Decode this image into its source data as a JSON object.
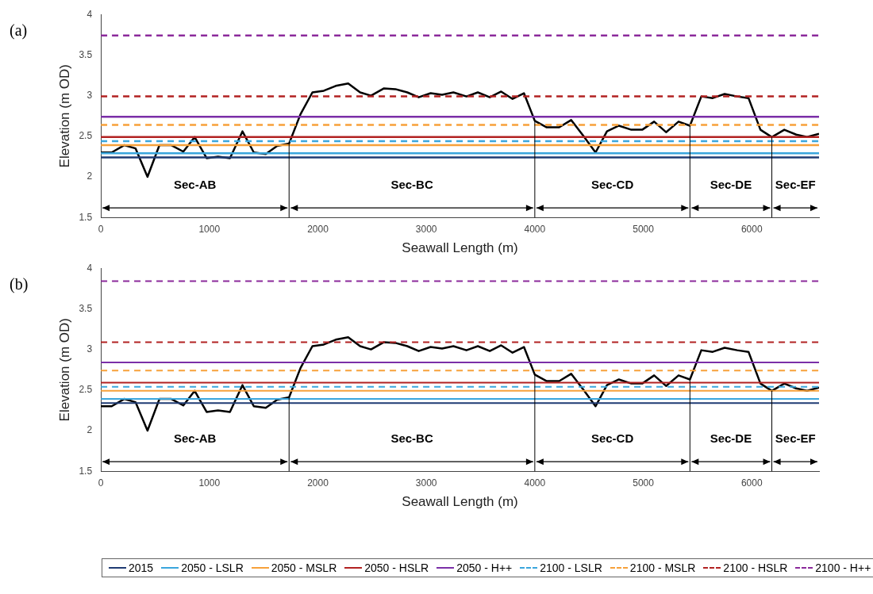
{
  "chart_data": [
    {
      "type": "line",
      "title": "(a)",
      "xlabel": "Seawall Length (m)",
      "ylabel": "Elevation (m OD)",
      "xlim": [
        0,
        6620
      ],
      "xticks": [
        0,
        1000,
        2000,
        3000,
        4000,
        5000,
        6000
      ],
      "ylim": [
        1.5,
        4
      ],
      "yticks": [
        1.5,
        2,
        2.5,
        3,
        3.5,
        4
      ],
      "grid": false,
      "legend": false,
      "marker": "none",
      "series": [
        {
          "color": "#1f3b73",
          "line_style": "solid",
          "x": [
            0,
            6620
          ],
          "values": [
            2.24,
            2.24
          ]
        },
        {
          "color": "#3aa6dd",
          "line_style": "solid",
          "x": [
            0,
            6620
          ],
          "values": [
            2.29,
            2.29
          ]
        },
        {
          "color": "#f7a13a",
          "line_style": "solid",
          "x": [
            0,
            6620
          ],
          "values": [
            2.39,
            2.39
          ]
        },
        {
          "color": "#b22222",
          "line_style": "solid",
          "x": [
            0,
            6620
          ],
          "values": [
            2.49,
            2.49
          ]
        },
        {
          "color": "#7b2fa8",
          "line_style": "solid",
          "x": [
            0,
            6620
          ],
          "values": [
            2.74,
            2.74
          ]
        },
        {
          "color": "#3aa6dd",
          "line_style": "dashed",
          "x": [
            0,
            6620
          ],
          "values": [
            2.44,
            2.44
          ]
        },
        {
          "color": "#f7a13a",
          "line_style": "dashed",
          "x": [
            0,
            6620
          ],
          "values": [
            2.64,
            2.64
          ]
        },
        {
          "color": "#b22222",
          "line_style": "dashed",
          "x": [
            0,
            6620
          ],
          "values": [
            2.99,
            2.99
          ]
        },
        {
          "color": "#8b2a9b",
          "line_style": "dashed",
          "x": [
            0,
            6620
          ],
          "values": [
            3.74,
            3.74
          ]
        },
        {
          "color": "#000000",
          "line_style": "solid",
          "x": [
            0,
            100,
            215,
            320,
            430,
            540,
            650,
            760,
            865,
            975,
            1080,
            1190,
            1305,
            1410,
            1520,
            1625,
            1735,
            1840,
            1950,
            2055,
            2165,
            2280,
            2390,
            2490,
            2610,
            2715,
            2825,
            2930,
            3040,
            3145,
            3250,
            3370,
            3475,
            3585,
            3690,
            3795,
            3900,
            4000,
            4110,
            4225,
            4335,
            4450,
            4560,
            4665,
            4775,
            4890,
            4990,
            5100,
            5210,
            5325,
            5430,
            5535,
            5640,
            5750,
            5865,
            5970,
            6080,
            6185,
            6300,
            6410,
            6510,
            6620
          ],
          "values": [
            2.3,
            2.3,
            2.39,
            2.35,
            2.0,
            2.39,
            2.39,
            2.31,
            2.49,
            2.23,
            2.25,
            2.23,
            2.56,
            2.3,
            2.28,
            2.38,
            2.41,
            2.77,
            3.04,
            3.06,
            3.12,
            3.15,
            3.04,
            3.0,
            3.09,
            3.08,
            3.04,
            2.98,
            3.03,
            3.01,
            3.04,
            2.99,
            3.04,
            2.98,
            3.05,
            2.96,
            3.03,
            2.69,
            2.61,
            2.61,
            2.7,
            2.5,
            2.3,
            2.56,
            2.63,
            2.58,
            2.58,
            2.68,
            2.55,
            2.68,
            2.63,
            2.99,
            2.97,
            3.02,
            2.99,
            2.97,
            2.58,
            2.49,
            2.58,
            2.52,
            2.49,
            2.53
          ]
        }
      ],
      "ref_lines": [
        {
          "axis": "x",
          "value": 1735,
          "label": null
        },
        {
          "axis": "x",
          "value": 4000,
          "label": null
        },
        {
          "axis": "x",
          "value": 5430,
          "label": null
        },
        {
          "axis": "x",
          "value": 6185,
          "label": null
        }
      ],
      "annotations": [
        "Sec-AB",
        "Sec-BC",
        "Sec-CD",
        "Sec-DE",
        "Sec-EF"
      ]
    },
    {
      "type": "line",
      "title": "(b)",
      "xlabel": "Seawall Length (m)",
      "ylabel": "Elevation (m OD)",
      "xlim": [
        0,
        6620
      ],
      "xticks": [
        0,
        1000,
        2000,
        3000,
        4000,
        5000,
        6000
      ],
      "ylim": [
        1.5,
        4
      ],
      "yticks": [
        1.5,
        2,
        2.5,
        3,
        3.5,
        4
      ],
      "grid": false,
      "legend": "bottom",
      "marker": "none",
      "series": [
        {
          "name": "2015",
          "color": "#1f3b73",
          "line_style": "solid",
          "x": [
            0,
            6620
          ],
          "values": [
            2.34,
            2.34
          ]
        },
        {
          "name": "2050 - LSLR",
          "color": "#3aa6dd",
          "line_style": "solid",
          "x": [
            0,
            6620
          ],
          "values": [
            2.39,
            2.39
          ]
        },
        {
          "name": "2050 - MSLR",
          "color": "#f7a13a",
          "line_style": "solid",
          "x": [
            0,
            6620
          ],
          "values": [
            2.49,
            2.49
          ]
        },
        {
          "name": "2050 - HSLR",
          "color": "#b22222",
          "line_style": "solid",
          "x": [
            0,
            6620
          ],
          "values": [
            2.59,
            2.59
          ]
        },
        {
          "name": "2050 - H++",
          "color": "#7b2fa8",
          "line_style": "solid",
          "x": [
            0,
            6620
          ],
          "values": [
            2.84,
            2.84
          ]
        },
        {
          "name": "2100 - LSLR",
          "color": "#3aa6dd",
          "line_style": "dashed",
          "x": [
            0,
            6620
          ],
          "values": [
            2.54,
            2.54
          ]
        },
        {
          "name": "2100 - MSLR",
          "color": "#f7a13a",
          "line_style": "dashed",
          "x": [
            0,
            6620
          ],
          "values": [
            2.74,
            2.74
          ]
        },
        {
          "name": "2100 - HSLR",
          "color": "#b22222",
          "line_style": "dashed",
          "x": [
            0,
            6620
          ],
          "values": [
            3.09,
            3.09
          ]
        },
        {
          "name": "2100 - H++",
          "color": "#8b2a9b",
          "line_style": "dashed",
          "x": [
            0,
            6620
          ],
          "values": [
            3.84,
            3.84
          ]
        },
        {
          "color": "#000000",
          "line_style": "solid",
          "x": [
            0,
            100,
            215,
            320,
            430,
            540,
            650,
            760,
            865,
            975,
            1080,
            1190,
            1305,
            1410,
            1520,
            1625,
            1735,
            1840,
            1950,
            2055,
            2165,
            2280,
            2390,
            2490,
            2610,
            2715,
            2825,
            2930,
            3040,
            3145,
            3250,
            3370,
            3475,
            3585,
            3690,
            3795,
            3900,
            4000,
            4110,
            4225,
            4335,
            4450,
            4560,
            4665,
            4775,
            4890,
            4990,
            5100,
            5210,
            5325,
            5430,
            5535,
            5640,
            5750,
            5865,
            5970,
            6080,
            6185,
            6300,
            6410,
            6510,
            6620
          ],
          "values": [
            2.3,
            2.3,
            2.39,
            2.35,
            2.0,
            2.39,
            2.39,
            2.31,
            2.49,
            2.23,
            2.25,
            2.23,
            2.56,
            2.3,
            2.28,
            2.38,
            2.41,
            2.77,
            3.04,
            3.06,
            3.12,
            3.15,
            3.04,
            3.0,
            3.09,
            3.08,
            3.04,
            2.98,
            3.03,
            3.01,
            3.04,
            2.99,
            3.04,
            2.98,
            3.05,
            2.96,
            3.03,
            2.69,
            2.61,
            2.61,
            2.7,
            2.5,
            2.3,
            2.56,
            2.63,
            2.58,
            2.58,
            2.68,
            2.55,
            2.68,
            2.63,
            2.99,
            2.97,
            3.02,
            2.99,
            2.97,
            2.58,
            2.49,
            2.58,
            2.52,
            2.49,
            2.53
          ]
        }
      ],
      "ref_lines": [
        {
          "axis": "x",
          "value": 1735,
          "label": null
        },
        {
          "axis": "x",
          "value": 4000,
          "label": null
        },
        {
          "axis": "x",
          "value": 5430,
          "label": null
        },
        {
          "axis": "x",
          "value": 6185,
          "label": null
        }
      ],
      "annotations": [
        "Sec-AB",
        "Sec-BC",
        "Sec-CD",
        "Sec-DE",
        "Sec-EF"
      ]
    }
  ]
}
